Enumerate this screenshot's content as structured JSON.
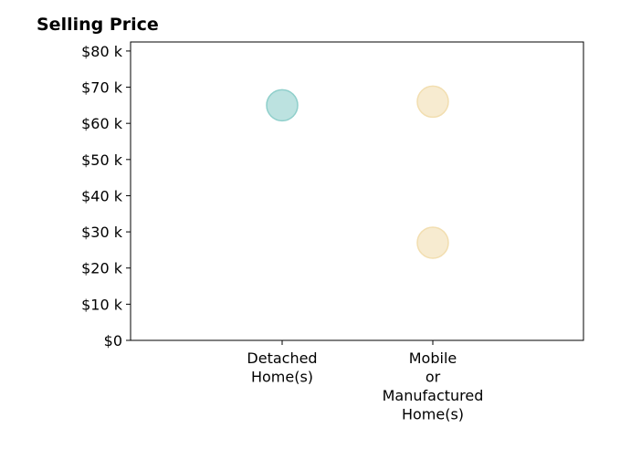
{
  "chart_data": {
    "type": "scatter",
    "title": "Selling Price",
    "xlabel": "",
    "ylabel": "",
    "ylim": [
      0,
      82500
    ],
    "yticks": [
      {
        "value": 0,
        "label": "$0"
      },
      {
        "value": 10000,
        "label": "$10 k"
      },
      {
        "value": 20000,
        "label": "$20 k"
      },
      {
        "value": 30000,
        "label": "$30 k"
      },
      {
        "value": 40000,
        "label": "$40 k"
      },
      {
        "value": 50000,
        "label": "$50 k"
      },
      {
        "value": 60000,
        "label": "$60 k"
      },
      {
        "value": 70000,
        "label": "$70 k"
      },
      {
        "value": 80000,
        "label": "$80 k"
      }
    ],
    "categories": [
      {
        "lines": [
          "Detached",
          "Home(s)"
        ]
      },
      {
        "lines": [
          "Mobile",
          "or",
          "Manufactured",
          "Home(s)"
        ]
      }
    ],
    "points": [
      {
        "category": 0,
        "value": 65000,
        "color": "#8fcfcb"
      },
      {
        "category": 1,
        "value": 66000,
        "color": "#f2deb0"
      },
      {
        "category": 1,
        "value": 27000,
        "color": "#f2deb0"
      }
    ],
    "grid": false,
    "legend": "none"
  }
}
